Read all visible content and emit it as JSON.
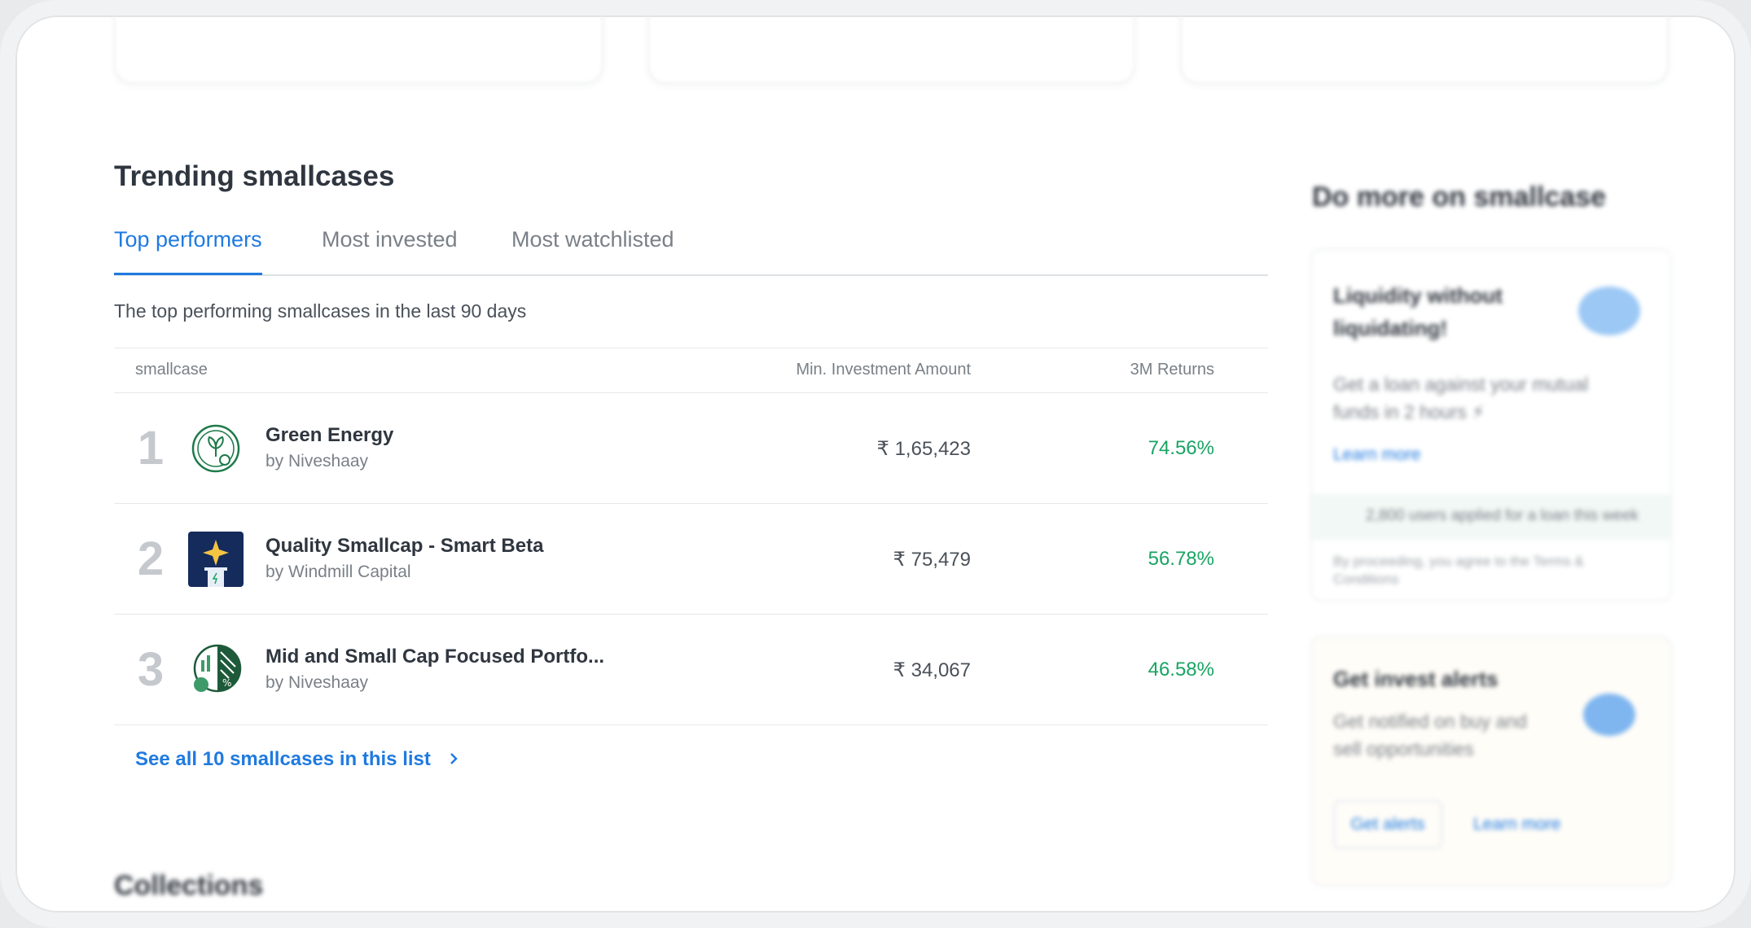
{
  "section": {
    "title": "Trending smallcases",
    "tabs": [
      "Top performers",
      "Most invested",
      "Most watchlisted"
    ],
    "active_tab": 0,
    "description": "The top performing smallcases in the last 90 days",
    "table": {
      "columns": [
        "smallcase",
        "Min. Investment Amount",
        "3M Returns"
      ],
      "rows": [
        {
          "rank": "1",
          "name": "Green Energy",
          "by": "by Niveshaay",
          "min_investment": "₹ 1,65,423",
          "returns": "74.56%"
        },
        {
          "rank": "2",
          "name": "Quality Smallcap - Smart Beta",
          "by": "by Windmill Capital",
          "min_investment": "₹ 75,479",
          "returns": "56.78%"
        },
        {
          "rank": "3",
          "name": "Mid and Small Cap Focused Portfo...",
          "by": "by Niveshaay",
          "min_investment": "₹ 34,067",
          "returns": "46.58%"
        }
      ]
    },
    "see_all": "See all 10 smallcases in this list"
  },
  "sidebar": {
    "title": "Do more on smallcase",
    "cards": [
      {
        "title": "Liquidity without liquidating!",
        "text": "Get a loan against your mutual funds in 2 hours ⚡",
        "link": "Learn more",
        "note": "2,800 users applied for a loan this week",
        "disclaimer": "By proceeding, you agree to the Terms & Conditions"
      },
      {
        "title": "Get invest alerts",
        "text": "Get notified on buy and sell opportunities",
        "buttons": [
          "Get alerts",
          "Learn more"
        ]
      }
    ]
  },
  "collections_title": "Collections"
}
